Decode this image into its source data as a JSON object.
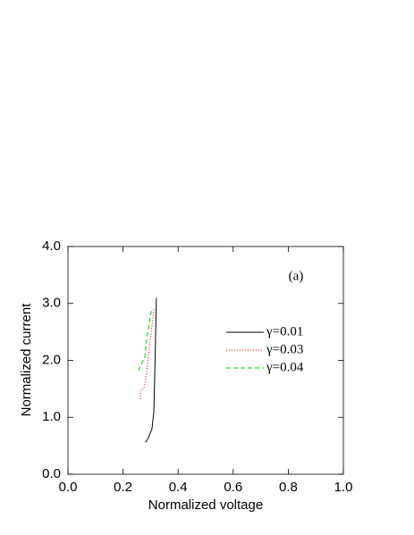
{
  "chart_data": {
    "type": "line",
    "xlabel": "Normalized voltage",
    "ylabel": "Normalized current",
    "annotation": "(a)",
    "xlim": [
      0,
      1
    ],
    "ylim": [
      0,
      4
    ],
    "xticks": [
      {
        "value": 0,
        "label": "0.0"
      },
      0.2,
      0.4,
      0.6,
      0.8,
      {
        "value": 1,
        "label": "1.0"
      }
    ],
    "yticks": [
      {
        "value": 0,
        "label": "0.0"
      },
      {
        "value": 1,
        "label": "1.0"
      },
      {
        "value": 2,
        "label": "2.0"
      },
      {
        "value": 3,
        "label": "3.0"
      },
      {
        "value": 4,
        "label": "4.0"
      }
    ],
    "series": [
      {
        "name": "γ=0.01",
        "color": "#000000",
        "dash": "none",
        "x": [
          0.282,
          0.292,
          0.305,
          0.312,
          0.315,
          0.318,
          0.321
        ],
        "values": [
          0.56,
          0.64,
          0.8,
          1.11,
          1.74,
          2.37,
          3.1
        ]
      },
      {
        "name": "γ=0.03",
        "color": "#e00000",
        "dash": "1,2",
        "x": [
          0.263,
          0.263,
          0.276,
          0.282,
          0.292,
          0.299,
          0.305,
          0.312
        ],
        "values": [
          1.32,
          1.47,
          1.52,
          1.66,
          2.05,
          2.37,
          2.6,
          2.92
        ]
      },
      {
        "name": "γ=0.04",
        "color": "#00cc00",
        "dash": "5,3",
        "x": [
          0.256,
          0.266,
          0.279,
          0.286,
          0.295,
          0.305
        ],
        "values": [
          1.82,
          1.93,
          2.05,
          2.37,
          2.65,
          2.92
        ]
      }
    ]
  }
}
